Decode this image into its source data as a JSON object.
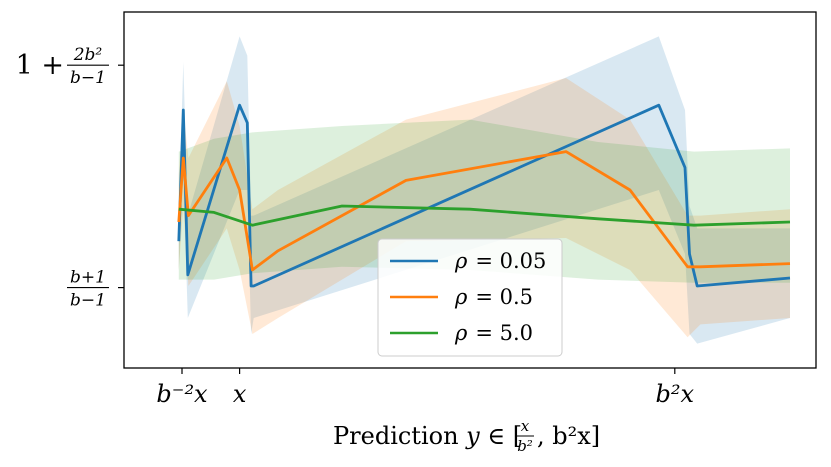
{
  "chart_data": {
    "type": "line",
    "xlabel": "Prediction y ∈ [x/b², b²x]",
    "xlabel_parts": {
      "prefix": "Prediction ",
      "var": "y",
      "in": " ∈ [",
      "frac_num": "x",
      "frac_den": "b²",
      "rest": ", b²x]"
    },
    "xlim": [
      0,
      1
    ],
    "ylim": [
      0,
      1
    ],
    "x_ticks": [
      {
        "value": 0.05,
        "label": "b⁻²x"
      },
      {
        "value": 0.14,
        "label": "x"
      },
      {
        "value": 0.82,
        "label": "b²x"
      }
    ],
    "y_ticks": [
      {
        "value": 0.195,
        "num": "b+1",
        "den": "b−1"
      },
      {
        "value": 0.89,
        "prefix": "1 + ",
        "num": "2b²",
        "den": "b−1"
      }
    ],
    "series": [
      {
        "name": "ρ = 0.05",
        "label_var": "ρ",
        "label_eq": "= 0.05",
        "color": "#1f77b4",
        "x": [
          0.045,
          0.052,
          0.059,
          0.14,
          0.152,
          0.158,
          0.162,
          0.795,
          0.836,
          0.843,
          0.855,
          1.0
        ],
        "y": [
          0.34,
          0.75,
          0.235,
          0.765,
          0.71,
          0.2,
          0.2,
          0.765,
          0.57,
          0.3,
          0.2,
          0.225
        ],
        "band_upper": [
          0.42,
          0.9,
          0.42,
          0.98,
          0.92,
          0.42,
          0.42,
          0.98,
          0.75,
          0.45,
          0.38,
          0.38
        ],
        "band_lower": [
          0.25,
          0.55,
          0.1,
          0.5,
          0.5,
          0.05,
          0.1,
          0.5,
          0.3,
          0.05,
          0.02,
          0.1
        ]
      },
      {
        "name": "ρ = 0.5",
        "label_var": "ρ",
        "label_eq": "= 0.5",
        "color": "#ff7f0e",
        "x": [
          0.045,
          0.052,
          0.06,
          0.12,
          0.14,
          0.16,
          0.2,
          0.4,
          0.65,
          0.75,
          0.84,
          0.86,
          1.0
        ],
        "y": [
          0.4,
          0.6,
          0.42,
          0.6,
          0.5,
          0.25,
          0.31,
          0.53,
          0.62,
          0.5,
          0.26,
          0.26,
          0.27
        ],
        "band_upper": [
          0.55,
          0.75,
          0.6,
          0.84,
          0.7,
          0.44,
          0.5,
          0.72,
          0.85,
          0.72,
          0.42,
          0.42,
          0.44
        ],
        "band_lower": [
          0.25,
          0.45,
          0.2,
          0.38,
          0.25,
          0.05,
          0.1,
          0.34,
          0.35,
          0.25,
          0.04,
          0.08,
          0.1
        ]
      },
      {
        "name": "ρ = 5.0",
        "label_var": "ρ",
        "label_eq": "= 5.0",
        "color": "#2ca02c",
        "x": [
          0.045,
          0.1,
          0.16,
          0.3,
          0.5,
          0.7,
          0.85,
          1.0
        ],
        "y": [
          0.44,
          0.43,
          0.39,
          0.45,
          0.44,
          0.41,
          0.39,
          0.4
        ],
        "band_upper": [
          0.62,
          0.66,
          0.68,
          0.7,
          0.72,
          0.65,
          0.62,
          0.63
        ],
        "band_lower": [
          0.22,
          0.22,
          0.24,
          0.26,
          0.25,
          0.22,
          0.21,
          0.21
        ]
      }
    ],
    "legend_position": "lower-center"
  }
}
